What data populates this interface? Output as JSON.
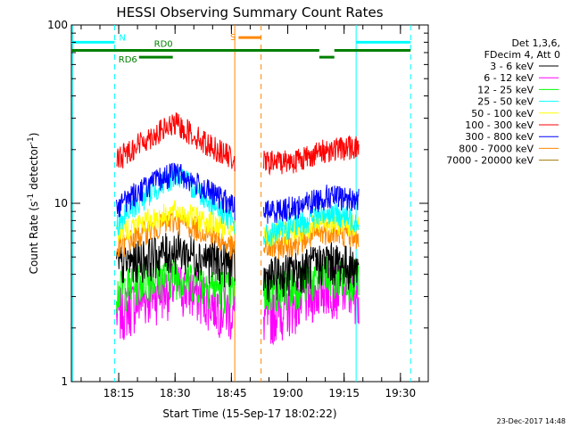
{
  "chart_data": {
    "type": "line",
    "title": "HESSI Observing Summary Count Rates",
    "xlabel": "Start Time (15-Sep-17 18:02:22)",
    "ylabel": "Count Rate (s",
    "ylabel_sup": "-1",
    "ylabel_tail": " detector",
    "ylabel_close": ")",
    "yscale": "log",
    "ylim": [
      1,
      100
    ],
    "xlim_minutes": [
      0,
      95
    ],
    "x_ticks": [
      {
        "label": "18:15",
        "t": 12.6
      },
      {
        "label": "18:30",
        "t": 27.6
      },
      {
        "label": "18:45",
        "t": 42.6
      },
      {
        "label": "19:00",
        "t": 57.6
      },
      {
        "label": "19:15",
        "t": 72.6
      },
      {
        "label": "19:30",
        "t": 87.6
      }
    ],
    "y_ticks": [
      {
        "label": "1",
        "v": 1
      },
      {
        "label": "10",
        "v": 10
      },
      {
        "label": "100",
        "v": 100
      }
    ],
    "legend_header": [
      "Det 1,3,6,",
      "FDecim 4, Att 0"
    ],
    "legend_position": "right",
    "segments": [
      [
        12.0,
        43.5
      ],
      [
        51.2,
        76.5
      ]
    ],
    "series": [
      {
        "name": "3 - 6 keV",
        "color": "#000000",
        "seg1": [
          4.5,
          5.0,
          5.5,
          5.0,
          4.5
        ],
        "seg2": [
          3.8,
          4.2,
          4.8,
          4.4
        ]
      },
      {
        "name": "6 - 12 keV",
        "color": "#ff00ff",
        "seg1": [
          2.4,
          3.0,
          3.5,
          3.0,
          2.4
        ],
        "seg2": [
          2.3,
          2.8,
          3.5,
          3.2
        ]
      },
      {
        "name": "12 - 25 keV",
        "color": "#00ff00",
        "seg1": [
          3.2,
          3.8,
          4.0,
          3.6,
          3.2
        ],
        "seg2": [
          3.2,
          3.5,
          4.0,
          3.8
        ]
      },
      {
        "name": "25 - 50 keV",
        "color": "#00ffff",
        "seg1": [
          7.5,
          11.0,
          14.5,
          11.0,
          7.5
        ],
        "seg2": [
          6.5,
          7.5,
          9.0,
          8.0
        ]
      },
      {
        "name": "50 - 100 keV",
        "color": "#ffff00",
        "seg1": [
          7.0,
          8.0,
          9.0,
          8.0,
          7.0
        ],
        "seg2": [
          6.5,
          7.0,
          8.0,
          7.5
        ]
      },
      {
        "name": "100 - 300 keV",
        "color": "#ff0000",
        "seg1": [
          17.5,
          23.0,
          28.0,
          22.0,
          17.5
        ],
        "seg2": [
          17.0,
          17.5,
          20.0,
          21.0
        ]
      },
      {
        "name": "300 - 800 keV",
        "color": "#0000ff",
        "seg1": [
          9.5,
          12.5,
          15.0,
          12.0,
          9.5
        ],
        "seg2": [
          9.0,
          9.5,
          11.0,
          10.5
        ]
      },
      {
        "name": "800 - 7000 keV",
        "color": "#ff8800",
        "seg1": [
          5.5,
          7.0,
          8.0,
          7.0,
          5.5
        ],
        "seg2": [
          5.5,
          6.0,
          7.0,
          6.5
        ]
      },
      {
        "name": "7000 - 20000 keV",
        "color": "#a07800",
        "seg1": [],
        "seg2": []
      }
    ],
    "flags": [
      {
        "label": "N",
        "color": "#00ffff",
        "v": 80,
        "spans": [
          [
            0,
            11.5
          ],
          [
            75.8,
            90.3
          ]
        ]
      },
      {
        "label": "S",
        "color": "#ff8800",
        "v": 85,
        "spans": [
          [
            44.5,
            50.5
          ]
        ]
      },
      {
        "label": "RD0",
        "color": "#008000",
        "v": 72,
        "spans": [
          [
            0,
            47.5
          ],
          [
            47.5,
            66.0
          ],
          [
            70.0,
            90.3
          ]
        ]
      },
      {
        "label": "RD6",
        "color": "#008000",
        "v": 66,
        "spans": [
          [
            18.0,
            27.0
          ],
          [
            66.0,
            70.0
          ]
        ]
      }
    ],
    "vlines": [
      {
        "t": 11.5,
        "color": "#00ffff",
        "dash": true
      },
      {
        "t": 43.5,
        "color": "#ff8800",
        "dash": false
      },
      {
        "t": 50.5,
        "color": "#ff8800",
        "dash": true
      },
      {
        "t": 75.8,
        "color": "#00ffff",
        "dash": false
      },
      {
        "t": 90.3,
        "color": "#00ffff",
        "dash": true
      },
      {
        "t": 0.3,
        "color": "#00ffff",
        "dash": false
      }
    ],
    "grid": false
  },
  "timestamp": "23-Dec-2017 14:48"
}
